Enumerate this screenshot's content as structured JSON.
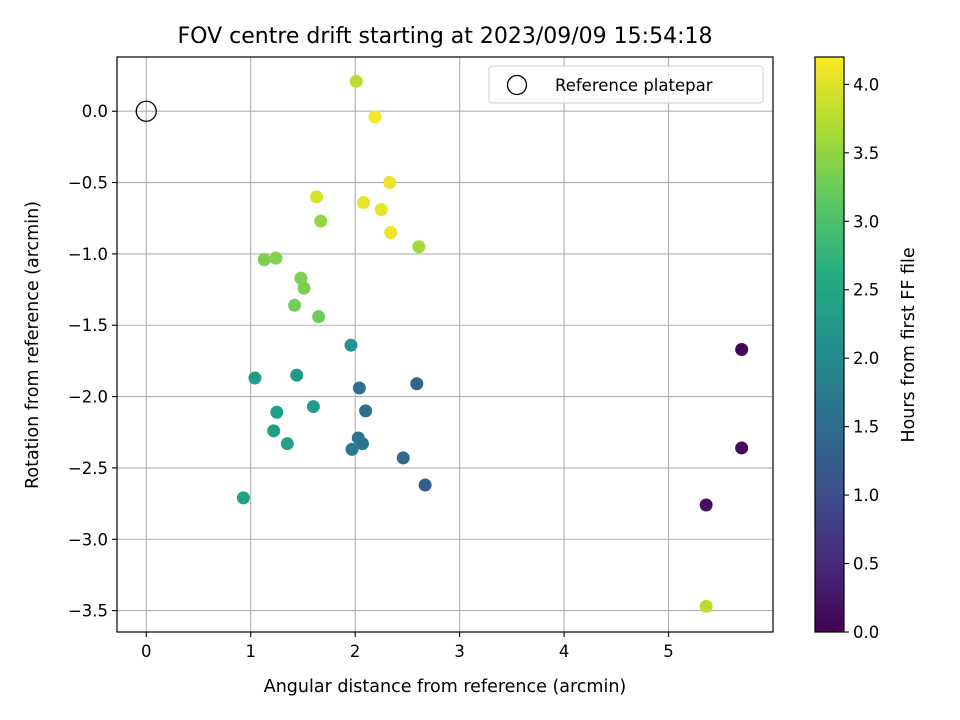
{
  "chart_data": {
    "type": "scatter",
    "title": "FOV centre drift starting at 2023/09/09 15:54:18",
    "xlabel": "Angular distance from reference (arcmin)",
    "ylabel": "Rotation from reference (arcmin)",
    "xlim": [
      -0.28,
      6.0
    ],
    "ylim": [
      -3.65,
      0.38
    ],
    "xticks": [
      0,
      1,
      2,
      3,
      4,
      5
    ],
    "xtick_labels": [
      "0",
      "1",
      "2",
      "3",
      "4",
      "5"
    ],
    "yticks": [
      0.0,
      -0.5,
      -1.0,
      -1.5,
      -2.0,
      -2.5,
      -3.0,
      -3.5
    ],
    "ytick_labels": [
      "0.0",
      "−0.5",
      "−1.0",
      "−1.5",
      "−2.0",
      "−2.5",
      "−3.0",
      "−3.5"
    ],
    "grid": true,
    "legend": {
      "placement": "top-right",
      "entries": [
        "Reference platepar"
      ]
    },
    "reference_point": {
      "label": "Reference platepar",
      "x": 0,
      "y": 0,
      "marker": "open-circle"
    },
    "colorbar": {
      "label": "Hours from first FF file",
      "colormap": "viridis",
      "range": [
        0.0,
        4.2
      ],
      "ticks": [
        0.0,
        0.5,
        1.0,
        1.5,
        2.0,
        2.5,
        3.0,
        3.5,
        4.0
      ],
      "tick_labels": [
        "0.0",
        "0.5",
        "1.0",
        "1.5",
        "2.0",
        "2.5",
        "3.0",
        "3.5",
        "4.0"
      ]
    },
    "points": [
      {
        "x": 5.7,
        "y": -1.67,
        "hours": 0.05
      },
      {
        "x": 5.7,
        "y": -2.36,
        "hours": 0.1
      },
      {
        "x": 5.36,
        "y": -2.76,
        "hours": 0.15
      },
      {
        "x": 2.67,
        "y": -2.62,
        "hours": 1.25
      },
      {
        "x": 2.46,
        "y": -2.43,
        "hours": 1.4
      },
      {
        "x": 2.59,
        "y": -1.91,
        "hours": 1.35
      },
      {
        "x": 2.1,
        "y": -2.1,
        "hours": 1.5
      },
      {
        "x": 2.04,
        "y": -1.94,
        "hours": 1.55
      },
      {
        "x": 2.07,
        "y": -2.33,
        "hours": 1.6
      },
      {
        "x": 2.03,
        "y": -2.29,
        "hours": 1.65
      },
      {
        "x": 1.97,
        "y": -2.37,
        "hours": 1.7
      },
      {
        "x": 1.96,
        "y": -1.64,
        "hours": 2.2
      },
      {
        "x": 1.44,
        "y": -1.85,
        "hours": 2.25
      },
      {
        "x": 1.6,
        "y": -2.07,
        "hours": 2.3
      },
      {
        "x": 1.04,
        "y": -1.87,
        "hours": 2.3
      },
      {
        "x": 1.25,
        "y": -2.11,
        "hours": 2.35
      },
      {
        "x": 1.22,
        "y": -2.24,
        "hours": 2.35
      },
      {
        "x": 1.35,
        "y": -2.33,
        "hours": 2.4
      },
      {
        "x": 0.93,
        "y": -2.71,
        "hours": 2.4
      },
      {
        "x": 1.65,
        "y": -1.44,
        "hours": 3.25
      },
      {
        "x": 1.42,
        "y": -1.36,
        "hours": 3.3
      },
      {
        "x": 1.51,
        "y": -1.24,
        "hours": 3.35
      },
      {
        "x": 1.48,
        "y": -1.17,
        "hours": 3.35
      },
      {
        "x": 1.13,
        "y": -1.04,
        "hours": 3.35
      },
      {
        "x": 1.24,
        "y": -1.03,
        "hours": 3.4
      },
      {
        "x": 1.67,
        "y": -0.77,
        "hours": 3.5
      },
      {
        "x": 2.61,
        "y": -0.95,
        "hours": 3.6
      },
      {
        "x": 2.01,
        "y": 0.21,
        "hours": 3.75
      },
      {
        "x": 5.36,
        "y": -3.47,
        "hours": 3.75
      },
      {
        "x": 1.63,
        "y": -0.6,
        "hours": 3.95
      },
      {
        "x": 2.08,
        "y": -0.64,
        "hours": 4.05
      },
      {
        "x": 2.25,
        "y": -0.69,
        "hours": 4.05
      },
      {
        "x": 2.34,
        "y": -0.85,
        "hours": 4.1
      },
      {
        "x": 2.33,
        "y": -0.5,
        "hours": 4.1
      },
      {
        "x": 2.19,
        "y": -0.04,
        "hours": 4.15
      }
    ]
  }
}
